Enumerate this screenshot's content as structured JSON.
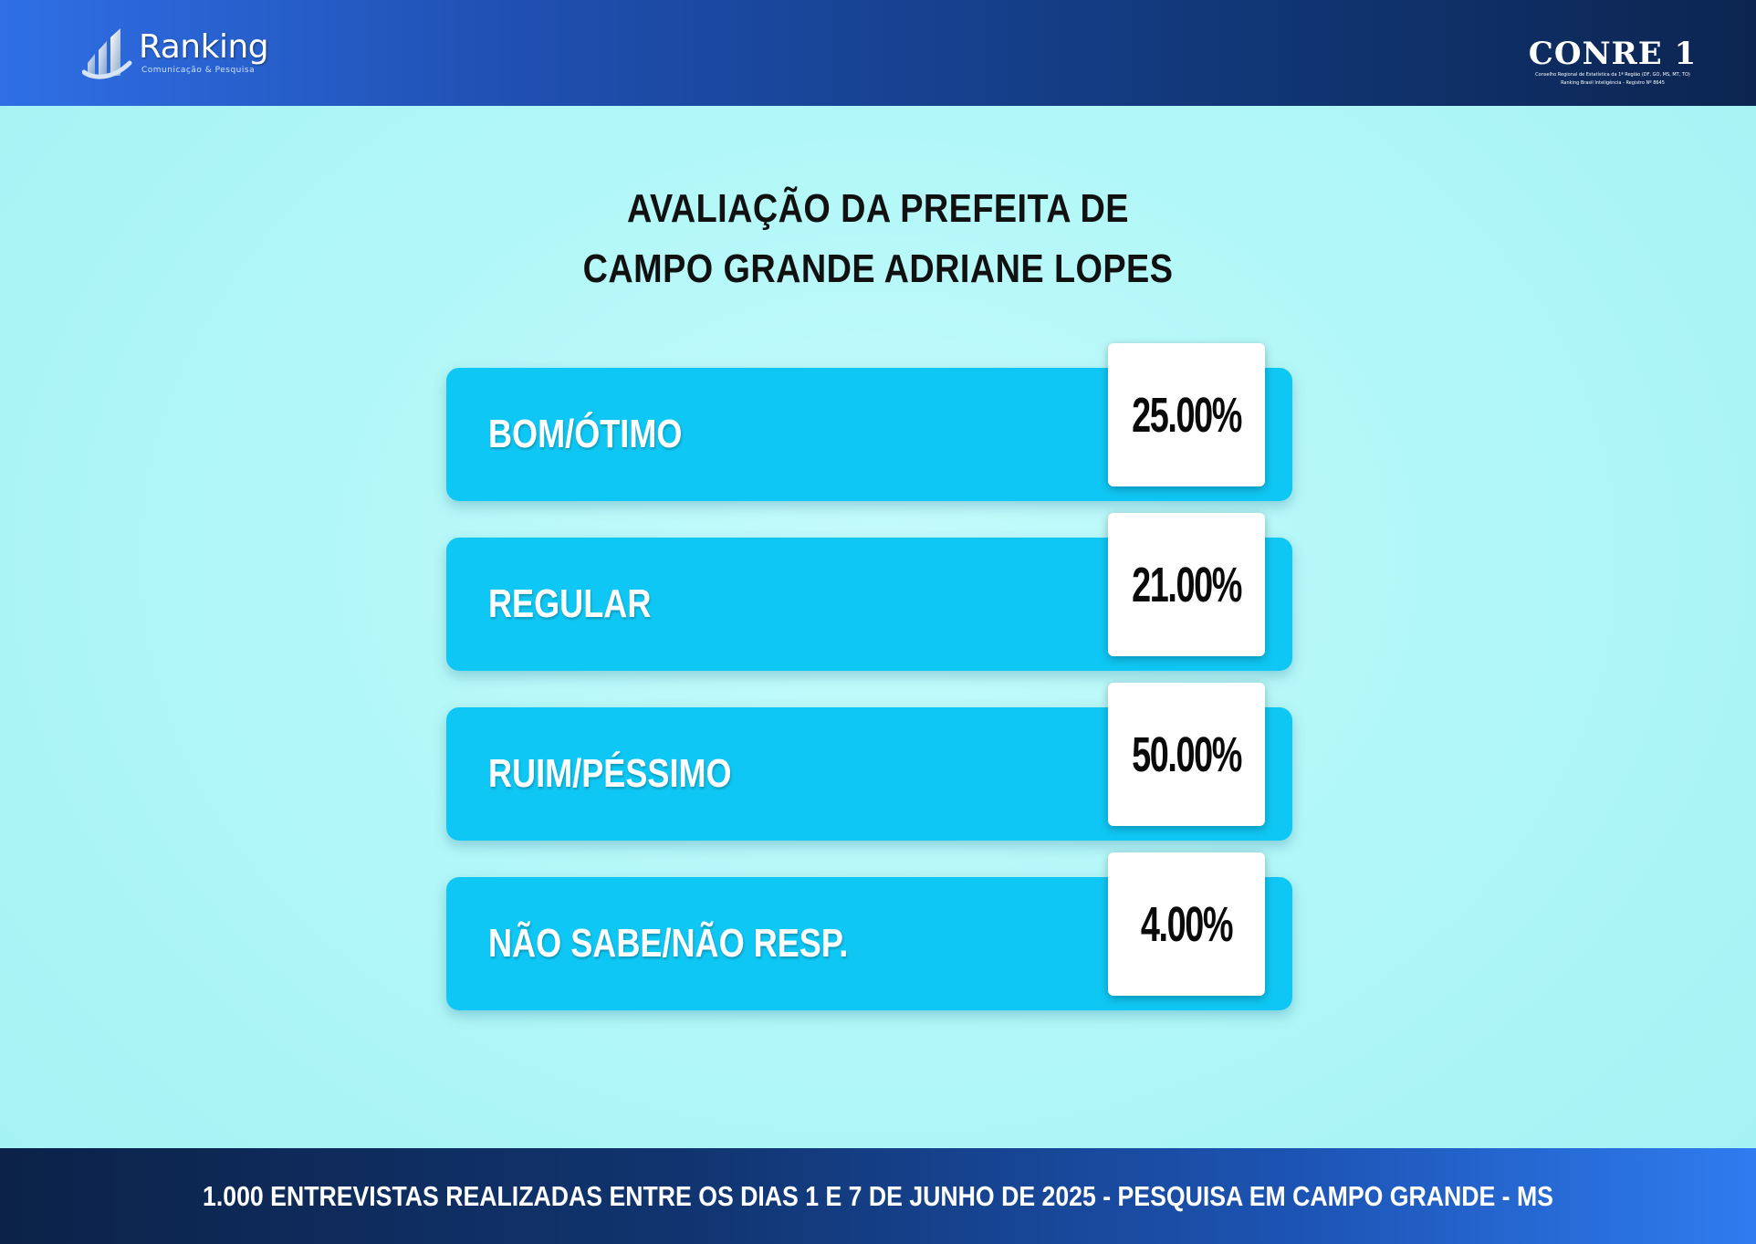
{
  "header": {
    "logo_left": {
      "name": "Ranking",
      "tagline": "Comunicação & Pesquisa",
      "icon": "bar-chart-logo-icon"
    },
    "logo_right": {
      "name": "CONRE 1",
      "line1": "Conselho Regional de Estatística da 1ª Região (DF, GO, MS, MT, TO)",
      "line2": "Ranking Brasil Inteligência - Registro Nº 8645"
    }
  },
  "colors": {
    "header_start": "#2f6fe6",
    "header_end": "#0c2550",
    "background": "#b2f7f8",
    "row_fill": "#0fc7f4",
    "value_box": "#ffffff",
    "title_text": "#111111"
  },
  "chart_data": {
    "type": "bar",
    "title_line1": "AVALIAÇÃO DA PREFEITA DE",
    "title_line2": "CAMPO GRANDE ADRIANE LOPES",
    "categories": [
      "BOM/ÓTIMO",
      "REGULAR",
      "RUIM/PÉSSIMO",
      "NÃO SABE/NÃO RESP."
    ],
    "values": [
      25.0,
      21.0,
      50.0,
      4.0
    ],
    "value_labels": [
      "25.00%",
      "21.00%",
      "50.00%",
      "4.00%"
    ],
    "unit": "%"
  },
  "footer": {
    "text": "1.000 ENTREVISTAS REALIZADAS ENTRE OS DIAS 1 E 7 DE JUNHO DE 2025  - PESQUISA EM CAMPO GRANDE - MS"
  }
}
